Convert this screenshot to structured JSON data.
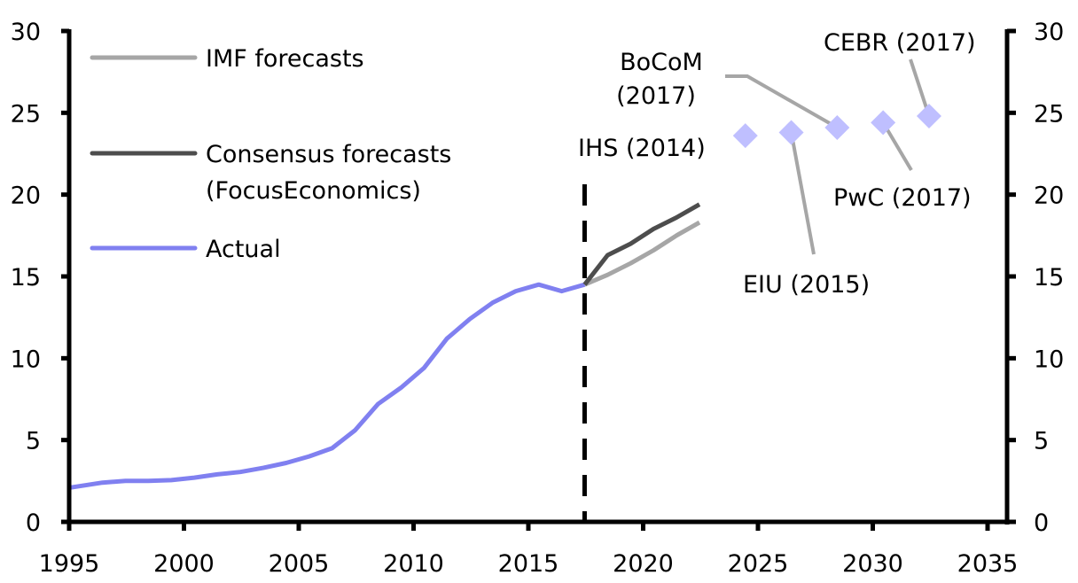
{
  "chart_data": {
    "type": "line",
    "title": "",
    "xlabel": "",
    "ylabel": "",
    "xlim": [
      1995,
      2035
    ],
    "ylim": [
      0,
      30
    ],
    "x_ticks": [
      "1995",
      "2000",
      "2005",
      "2010",
      "2015",
      "2020",
      "2025",
      "2030",
      "2035"
    ],
    "y_ticks_left": [
      "0",
      "5",
      "10",
      "15",
      "20",
      "25",
      "30"
    ],
    "y_ticks_right": [
      "0",
      "5",
      "10",
      "15",
      "20",
      "25",
      "30"
    ],
    "grid": false,
    "legend_position": "top-left",
    "legend": [
      "IMF forecasts",
      "Consensus forecasts\n(FocusEconomics)",
      "Actual"
    ],
    "legend_lines": [
      [
        "IMF forecasts"
      ],
      [
        "Consensus forecasts",
        "(FocusEconomics)"
      ],
      [
        "Actual"
      ]
    ],
    "colors": {
      "imf": "#A6A6A6",
      "consensus": "#4D4D4D",
      "actual": "#8080F0",
      "diamonds": "#BFBFFF",
      "leader": "#A6A6A6",
      "axis": "#000000",
      "divider": "#000000"
    },
    "divider_year": 2017,
    "series": [
      {
        "name": "Actual",
        "x": [
          1995,
          1996,
          1997,
          1998,
          1999,
          2000,
          2001,
          2002,
          2003,
          2004,
          2005,
          2006,
          2007,
          2008,
          2009,
          2010,
          2011,
          2012,
          2013,
          2014,
          2015,
          2016,
          2017
        ],
        "values": [
          2.1,
          2.4,
          2.5,
          2.5,
          2.55,
          2.7,
          2.9,
          3.05,
          3.3,
          3.6,
          4.0,
          4.5,
          5.6,
          7.2,
          8.2,
          9.4,
          11.2,
          12.4,
          13.4,
          14.1,
          14.5,
          14.1,
          14.5
        ]
      },
      {
        "name": "IMF forecasts",
        "x": [
          2017,
          2018,
          2019,
          2020,
          2021,
          2022
        ],
        "values": [
          14.5,
          15.1,
          15.8,
          16.6,
          17.5,
          18.3
        ]
      },
      {
        "name": "Consensus forecasts (FocusEconomics)",
        "x": [
          2017,
          2018,
          2019,
          2020,
          2021,
          2022
        ],
        "values": [
          14.5,
          16.3,
          17.0,
          17.9,
          18.6,
          19.4
        ]
      }
    ],
    "point_forecasts": [
      {
        "label": "IHS (2014)",
        "x": 2024,
        "value": 23.6
      },
      {
        "label": "EIU (2015)",
        "x": 2026,
        "value": 23.8
      },
      {
        "label": "BoCoM (2017)",
        "label_lines": [
          "BoCoM",
          "(2017)"
        ],
        "x": 2028,
        "value": 24.1
      },
      {
        "label": "PwC (2017)",
        "x": 2030,
        "value": 24.4
      },
      {
        "label": "CEBR (2017)",
        "x": 2032,
        "value": 24.8
      }
    ]
  }
}
